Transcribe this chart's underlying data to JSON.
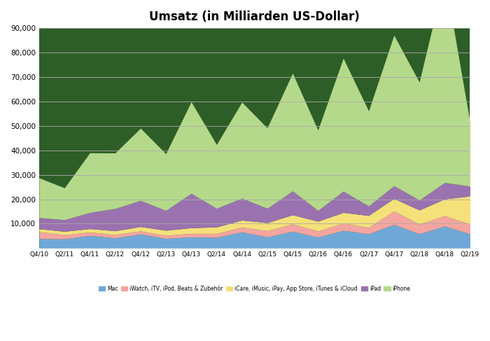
{
  "title": "Umsatz (in Milliarden US-Dollar)",
  "ylim": [
    0,
    90000
  ],
  "yticks": [
    10000,
    20000,
    30000,
    40000,
    50000,
    60000,
    70000,
    80000,
    90000
  ],
  "ytick_labels": [
    "10,000",
    "20,000",
    "30,000",
    "40,000",
    "50,000",
    "60,000",
    "70,000",
    "80,000",
    "90,000"
  ],
  "quarters": [
    "Q4/10",
    "Q2/11",
    "Q4/11",
    "Q2/12",
    "Q4/12",
    "Q2/13",
    "Q4/13",
    "Q2/14",
    "Q4/14",
    "Q2/15",
    "Q4/15",
    "Q2/16",
    "Q4/16",
    "Q2/17",
    "Q4/17",
    "Q2/18",
    "Q4/18",
    "Q2/19"
  ],
  "mac": [
    3900,
    3760,
    5190,
    4153,
    5770,
    3955,
    4573,
    4408,
    6620,
    4563,
    6880,
    4520,
    7244,
    5844,
    9677,
    5850,
    9025,
    5820
  ],
  "other": [
    2800,
    1700,
    1380,
    1366,
    1255,
    1270,
    1440,
    1600,
    1955,
    2560,
    3035,
    2480,
    2970,
    2660,
    5489,
    3950,
    4234,
    3960
  ],
  "services": [
    1198,
    1400,
    1380,
    1558,
    1780,
    2046,
    2310,
    2648,
    2854,
    3280,
    3681,
    3980,
    4357,
    4836,
    5129,
    5765,
    6828,
    11500
  ],
  "ipad": [
    4605,
    4743,
    6622,
    9153,
    10673,
    8127,
    14077,
    7615,
    8985,
    5892,
    9794,
    4413,
    8729,
    3897,
    5217,
    4113,
    6729,
    4088
  ],
  "iphone": [
    16236,
    13033,
    24396,
    22686,
    29554,
    23205,
    37431,
    26064,
    39271,
    32856,
    48173,
    32857,
    54378,
    38852,
    61576,
    48196,
    84310,
    26000
  ],
  "colors": {
    "mac": "#6fa8d6",
    "other": "#f4a5a0",
    "services": "#f5e17a",
    "ipad": "#9b72b0",
    "iphone": "#b5d98b"
  },
  "chart_bg": "#2e5e28",
  "legend_labels": [
    "Mac",
    "iWatch, iTV, iPod, Beats & Zubehör",
    "iCare, iMusic, iPay, App Store, iTunes & iCloud",
    "iPad",
    "iPhone"
  ],
  "background_color": "#ffffff",
  "figsize": [
    7.0,
    4.87
  ],
  "dpi": 100
}
